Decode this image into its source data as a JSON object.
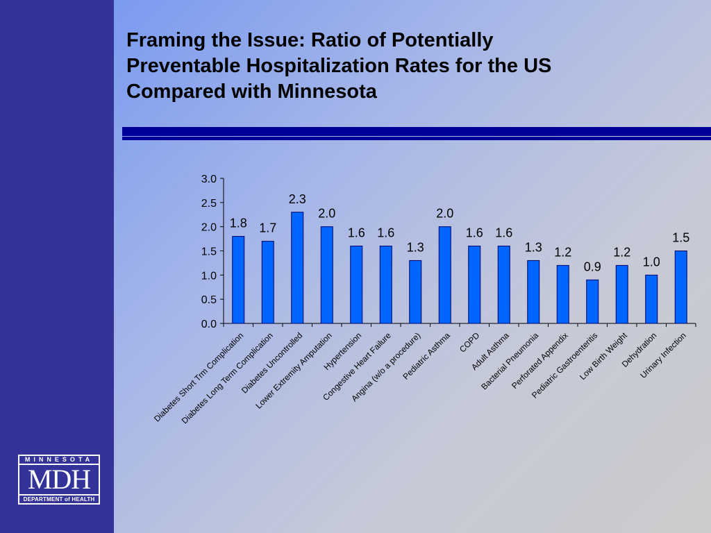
{
  "slide": {
    "title": "Framing the Issue:  Ratio of Potentially\nPreventable Hospitalization Rates for the US\nCompared with Minnesota",
    "colors": {
      "sidebar": "#333399",
      "divider": "#000099",
      "bar_fill": "#0066ff",
      "bar_stroke": "#000066"
    }
  },
  "logo": {
    "top_text": "MINNESOTA",
    "main_text": "MDH",
    "bottom_text": "DEPARTMENT of HEALTH"
  },
  "chart_data": {
    "type": "bar",
    "title": "",
    "xlabel": "",
    "ylabel": "",
    "ylim": [
      0,
      3.0
    ],
    "yticks": [
      "0.0",
      "0.5",
      "1.0",
      "1.5",
      "2.0",
      "2.5",
      "3.0"
    ],
    "grid": false,
    "legend": "none",
    "categories": [
      "Diabetes Short Trm Complication",
      "Diabetes Long Term Complication",
      "Diabetes Uncontrolled",
      "Lower Extremity Amputation",
      "Hypertension",
      "Congestive Heart Failure",
      "Angina (w/o a procedure)",
      "Pediatric Asthma",
      "COPD",
      "Adult Asthma",
      "Bacterial Pneumonia",
      "Perforated Appendix",
      "Pediatric Gastroenteritis",
      "Low Birth Weight",
      "Dehydration",
      "Urinary Infection"
    ],
    "values": [
      1.8,
      1.7,
      2.3,
      2.0,
      1.6,
      1.6,
      1.3,
      2.0,
      1.6,
      1.6,
      1.3,
      1.2,
      0.9,
      1.2,
      1.0,
      1.5
    ],
    "data_labels": [
      "1.8",
      "1.7",
      "2.3",
      "2.0",
      "1.6",
      "1.6",
      "1.3",
      "2.0",
      "1.6",
      "1.6",
      "1.3",
      "1.2",
      "0.9",
      "1.2",
      "1.0",
      "1.5"
    ]
  }
}
